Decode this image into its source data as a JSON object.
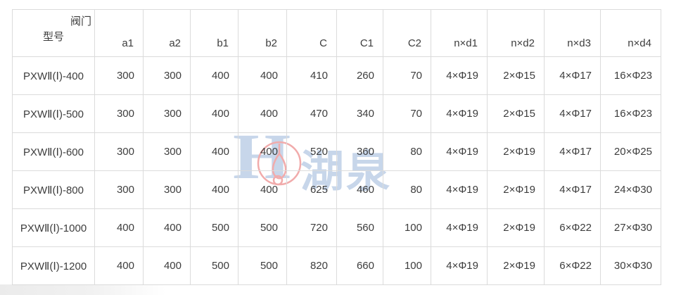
{
  "table": {
    "corner": {
      "top_label": "阀门",
      "bottom_label": "型号"
    },
    "columns": [
      "a1",
      "a2",
      "b1",
      "b2",
      "C",
      "C1",
      "C2",
      "n×d1",
      "n×d2",
      "n×d3",
      "n×d4"
    ],
    "rows": [
      {
        "model": "PXWⅡ(Ⅰ)-400",
        "values": [
          "300",
          "300",
          "400",
          "400",
          "410",
          "260",
          "70",
          "4×Φ19",
          "2×Φ15",
          "4×Φ17",
          "16×Φ23"
        ]
      },
      {
        "model": "PXWⅡ(Ⅰ)-500",
        "values": [
          "300",
          "300",
          "400",
          "400",
          "470",
          "340",
          "70",
          "4×Φ19",
          "2×Φ15",
          "4×Φ17",
          "16×Φ23"
        ]
      },
      {
        "model": "PXWⅡ(Ⅰ)-600",
        "values": [
          "300",
          "300",
          "400",
          "400",
          "520",
          "360",
          "80",
          "4×Φ19",
          "2×Φ19",
          "4×Φ17",
          "20×Φ25"
        ]
      },
      {
        "model": "PXWⅡ(Ⅰ)-800",
        "values": [
          "300",
          "300",
          "400",
          "400",
          "625",
          "460",
          "80",
          "4×Φ19",
          "2×Φ19",
          "4×Φ17",
          "24×Φ30"
        ]
      },
      {
        "model": "PXWⅡ(Ⅰ)-1000",
        "values": [
          "400",
          "400",
          "500",
          "500",
          "720",
          "560",
          "100",
          "4×Φ19",
          "2×Φ19",
          "6×Φ22",
          "27×Φ30"
        ]
      },
      {
        "model": "PXWⅡ(Ⅰ)-1200",
        "values": [
          "400",
          "400",
          "500",
          "500",
          "820",
          "660",
          "100",
          "4×Φ19",
          "2×Φ19",
          "6×Φ22",
          "30×Φ30"
        ]
      }
    ]
  },
  "watermark": {
    "letter": "H",
    "text": "湖泉",
    "blue_color": "#c7d6ea",
    "red_color": "#f1abab"
  },
  "colors": {
    "background": "#ffffff",
    "border": "#dbdbdb",
    "text": "#3d3d3d"
  }
}
